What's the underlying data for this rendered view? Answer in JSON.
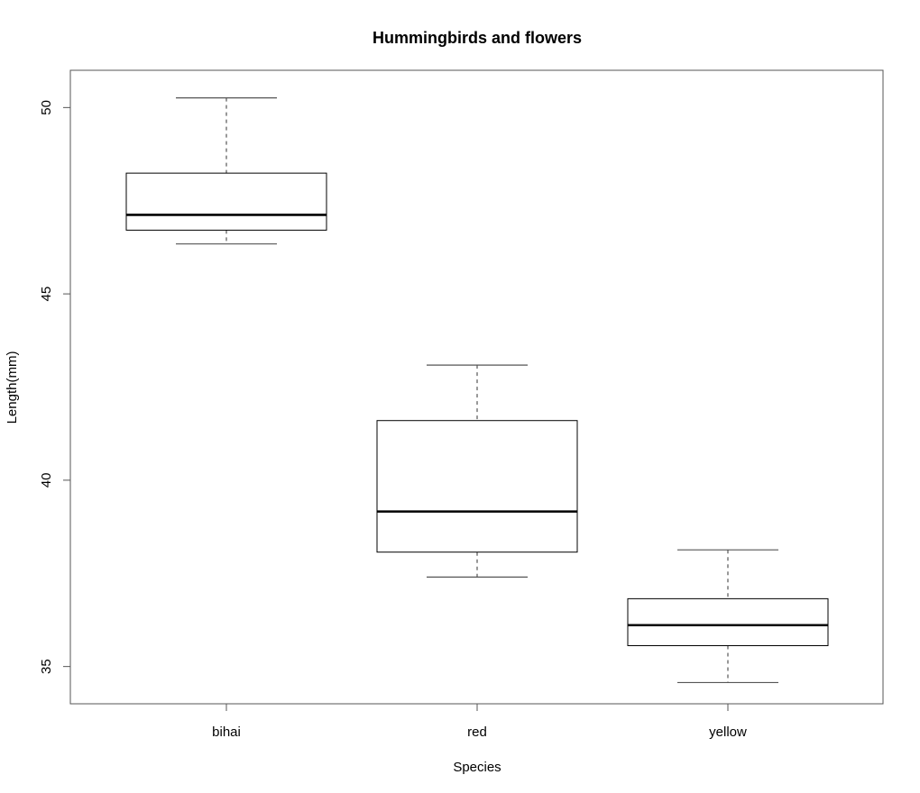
{
  "chart_data": {
    "type": "boxplot",
    "title": "Hummingbirds and flowers",
    "xlabel": "Species",
    "ylabel": "Length(mm)",
    "categories": [
      "bihai",
      "red",
      "yellow"
    ],
    "ylim": [
      34.0,
      51.0
    ],
    "yticks": [
      35,
      40,
      45,
      50
    ],
    "ytick_labels": [
      "35",
      "40",
      "45",
      "50"
    ],
    "boxes": [
      {
        "category": "bihai",
        "min": 46.34,
        "q1": 46.71,
        "median": 47.12,
        "q3": 48.24,
        "max": 50.26
      },
      {
        "category": "red",
        "min": 37.4,
        "q1": 38.07,
        "median": 39.16,
        "q3": 41.6,
        "max": 43.09
      },
      {
        "category": "yellow",
        "min": 34.57,
        "q1": 35.56,
        "median": 36.11,
        "q3": 36.82,
        "max": 38.13
      }
    ],
    "grid": false,
    "colors": {
      "box_stroke": "#000000",
      "whisker": "#555555",
      "median": "#000000"
    }
  }
}
